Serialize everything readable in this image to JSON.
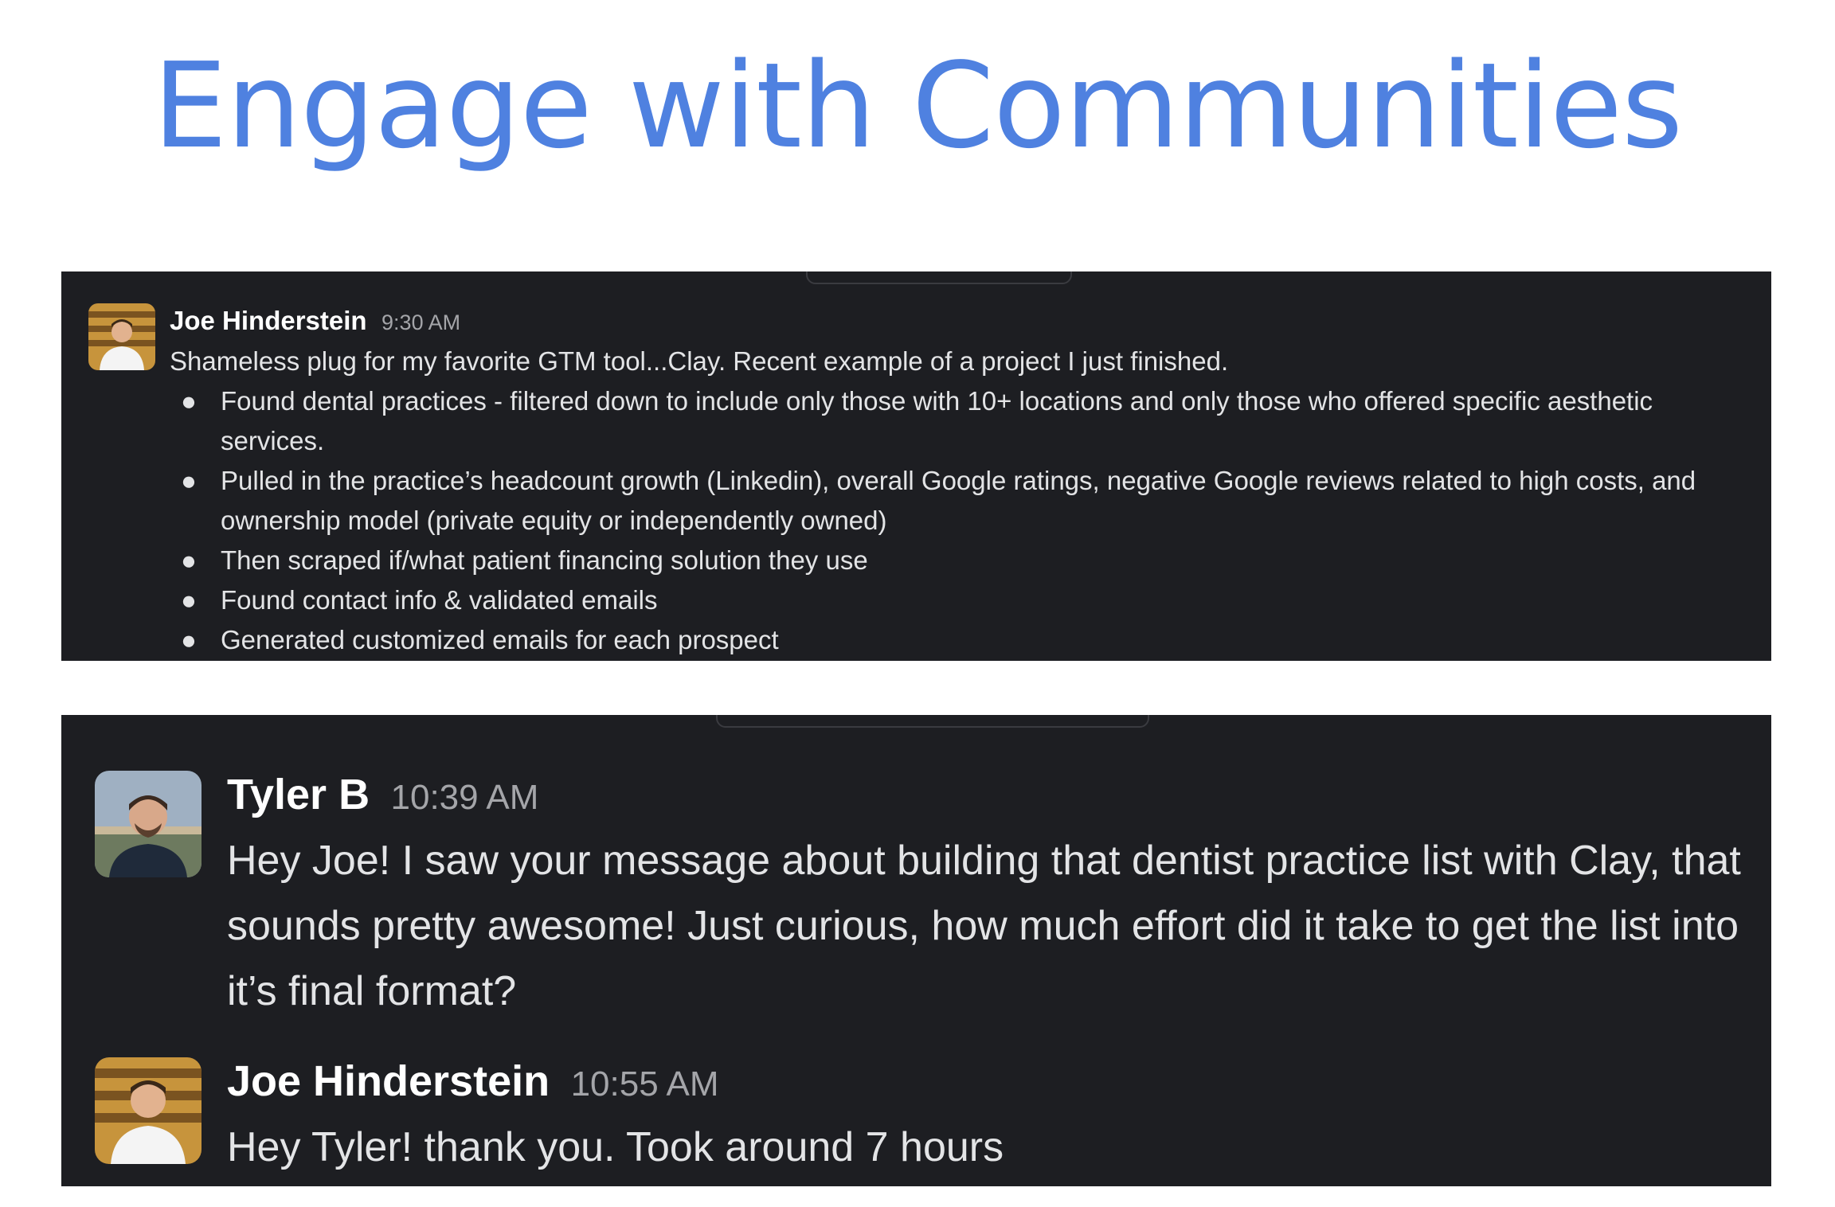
{
  "slide": {
    "title": "Engage with Communities"
  },
  "post": {
    "author": "Joe Hinderstein",
    "time": "9:30 AM",
    "intro": "Shameless plug for my favorite GTM tool...Clay. Recent example of a project I just finished.",
    "bullets": [
      "Found dental practices - filtered down to include only those with 10+ locations and only those who offered specific aesthetic services.",
      "Pulled in the practice’s headcount growth (Linkedin), overall Google ratings, negative Google reviews related to high costs, and ownership model (private equity or independently owned)",
      "Then scraped if/what patient financing solution they use",
      "Found contact info & validated emails",
      "Generated customized emails for each prospect"
    ]
  },
  "thread": {
    "messages": [
      {
        "author": "Tyler B",
        "time": "10:39 AM",
        "text": "Hey Joe! I saw your message about building that dentist practice list with Clay, that sounds pretty awesome! Just curious, how much effort did it take to get the list into it’s final format?"
      },
      {
        "author": "Joe Hinderstein",
        "time": "10:55 AM",
        "text": "Hey Tyler! thank you. Took around 7 hours"
      }
    ]
  },
  "icons": {
    "avatar_joe": "person-avatar-photo",
    "avatar_tyler": "person-avatar-photo",
    "bullet": "bullet-dot"
  },
  "colors": {
    "title": "#4f81e0",
    "panel_bg": "#1d1e22",
    "name_text": "#ffffff",
    "body_text": "#e3e4e6",
    "timestamp": "#a4a5a9"
  }
}
